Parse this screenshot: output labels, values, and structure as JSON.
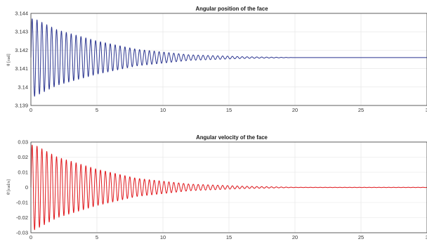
{
  "chart_data": [
    {
      "type": "line",
      "title": "Angular position of the face",
      "xlabel": "",
      "ylabel": "θ [rad]",
      "xlim": [
        0,
        30
      ],
      "ylim": [
        3.139,
        3.144
      ],
      "xticks": [
        "0",
        "5",
        "10",
        "15",
        "20",
        "25",
        "3"
      ],
      "yticks": [
        "3.139",
        "3.14",
        "3.141",
        "3.142",
        "3.143",
        "3.144"
      ],
      "grid": true,
      "series": [
        {
          "color": "#2b3590",
          "signal": "damped oscillation",
          "t_start": 0,
          "t_end": 30,
          "offset": 3.1416,
          "initial_amplitude": 0.0021,
          "envelope": [
            [
              0.3,
              0.0021
            ],
            [
              2,
              0.0015
            ],
            [
              5,
              0.0009
            ],
            [
              8,
              0.00045
            ],
            [
              12,
              0.00015
            ],
            [
              16,
              5e-05
            ],
            [
              20,
              0.0
            ]
          ],
          "period": 0.37
        }
      ]
    },
    {
      "type": "line",
      "title": "Angular velocity of the face",
      "xlabel": "",
      "ylabel": "θ̇ [rad/s]",
      "xlim": [
        0,
        30
      ],
      "ylim": [
        -0.03,
        0.03
      ],
      "xticks": [
        "0",
        "5",
        "10",
        "15",
        "20",
        "25",
        "3"
      ],
      "yticks": [
        "-0.03",
        "-0.02",
        "-0.01",
        "0",
        "0.01",
        "0.02",
        "0.03"
      ],
      "grid": true,
      "series": [
        {
          "color": "#e0161b",
          "signal": "damped oscillation",
          "t_start": 0,
          "t_end": 30,
          "offset": 0,
          "initial_amplitude": 0.028,
          "envelope": [
            [
              0.3,
              0.028
            ],
            [
              2,
              0.02
            ],
            [
              5,
              0.012
            ],
            [
              8,
              0.006
            ],
            [
              12,
              0.0022
            ],
            [
              16,
              0.0008
            ],
            [
              20,
              0.0001
            ]
          ],
          "period": 0.37
        }
      ]
    }
  ]
}
